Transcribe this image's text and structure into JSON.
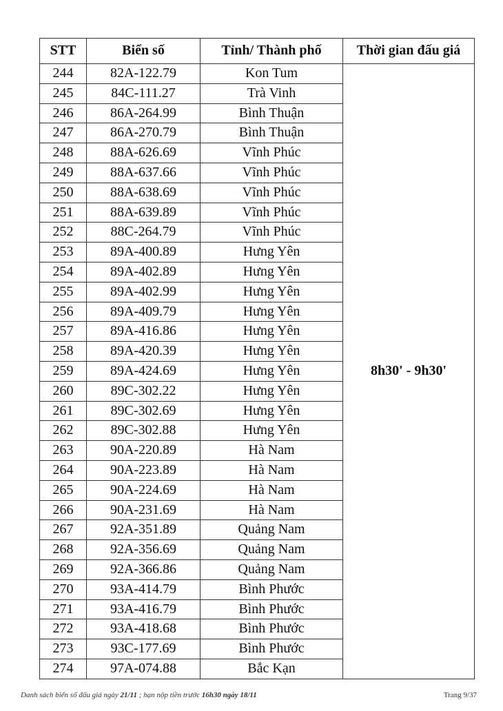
{
  "table": {
    "header": [
      "STT",
      "Biển số",
      "Tỉnh/ Thành phố",
      "Thời gian đấu giá"
    ],
    "time": "8h30' - 9h30'",
    "rows": [
      [
        244,
        "82A-122.79",
        "Kon Tum"
      ],
      [
        245,
        "84C-111.27",
        "Trà Vinh"
      ],
      [
        246,
        "86A-264.99",
        "Bình Thuận"
      ],
      [
        247,
        "86A-270.79",
        "Bình Thuận"
      ],
      [
        248,
        "88A-626.69",
        "Vĩnh Phúc"
      ],
      [
        249,
        "88A-637.66",
        "Vĩnh Phúc"
      ],
      [
        250,
        "88A-638.69",
        "Vĩnh Phúc"
      ],
      [
        251,
        "88A-639.89",
        "Vĩnh Phúc"
      ],
      [
        252,
        "88C-264.79",
        "Vĩnh Phúc"
      ],
      [
        253,
        "89A-400.89",
        "Hưng Yên"
      ],
      [
        254,
        "89A-402.89",
        "Hưng Yên"
      ],
      [
        255,
        "89A-402.99",
        "Hưng Yên"
      ],
      [
        256,
        "89A-409.79",
        "Hưng Yên"
      ],
      [
        257,
        "89A-416.86",
        "Hưng Yên"
      ],
      [
        258,
        "89A-420.39",
        "Hưng Yên"
      ],
      [
        259,
        "89A-424.69",
        "Hưng Yên"
      ],
      [
        260,
        "89C-302.22",
        "Hưng Yên"
      ],
      [
        261,
        "89C-302.69",
        "Hưng Yên"
      ],
      [
        262,
        "89C-302.88",
        "Hưng Yên"
      ],
      [
        263,
        "90A-220.89",
        "Hà Nam"
      ],
      [
        264,
        "90A-223.89",
        "Hà Nam"
      ],
      [
        265,
        "90A-224.69",
        "Hà Nam"
      ],
      [
        266,
        "90A-231.69",
        "Hà Nam"
      ],
      [
        267,
        "92A-351.89",
        "Quảng Nam"
      ],
      [
        268,
        "92A-356.69",
        "Quảng Nam"
      ],
      [
        269,
        "92A-366.86",
        "Quảng Nam"
      ],
      [
        270,
        "93A-414.79",
        "Bình Phước"
      ],
      [
        271,
        "93A-416.79",
        "Bình Phước"
      ],
      [
        272,
        "93A-418.68",
        "Bình Phước"
      ],
      [
        273,
        "93C-177.69",
        "Bình Phước"
      ],
      [
        274,
        "97A-074.88",
        "Bắc Kạn"
      ]
    ]
  },
  "footer": {
    "parts": [
      "Danh sách biển số đấu giá ngày",
      "21/11",
      "; hạn nộp tiền trước",
      "16h30 ngày 18/11"
    ],
    "page": "Trang 9/37"
  }
}
